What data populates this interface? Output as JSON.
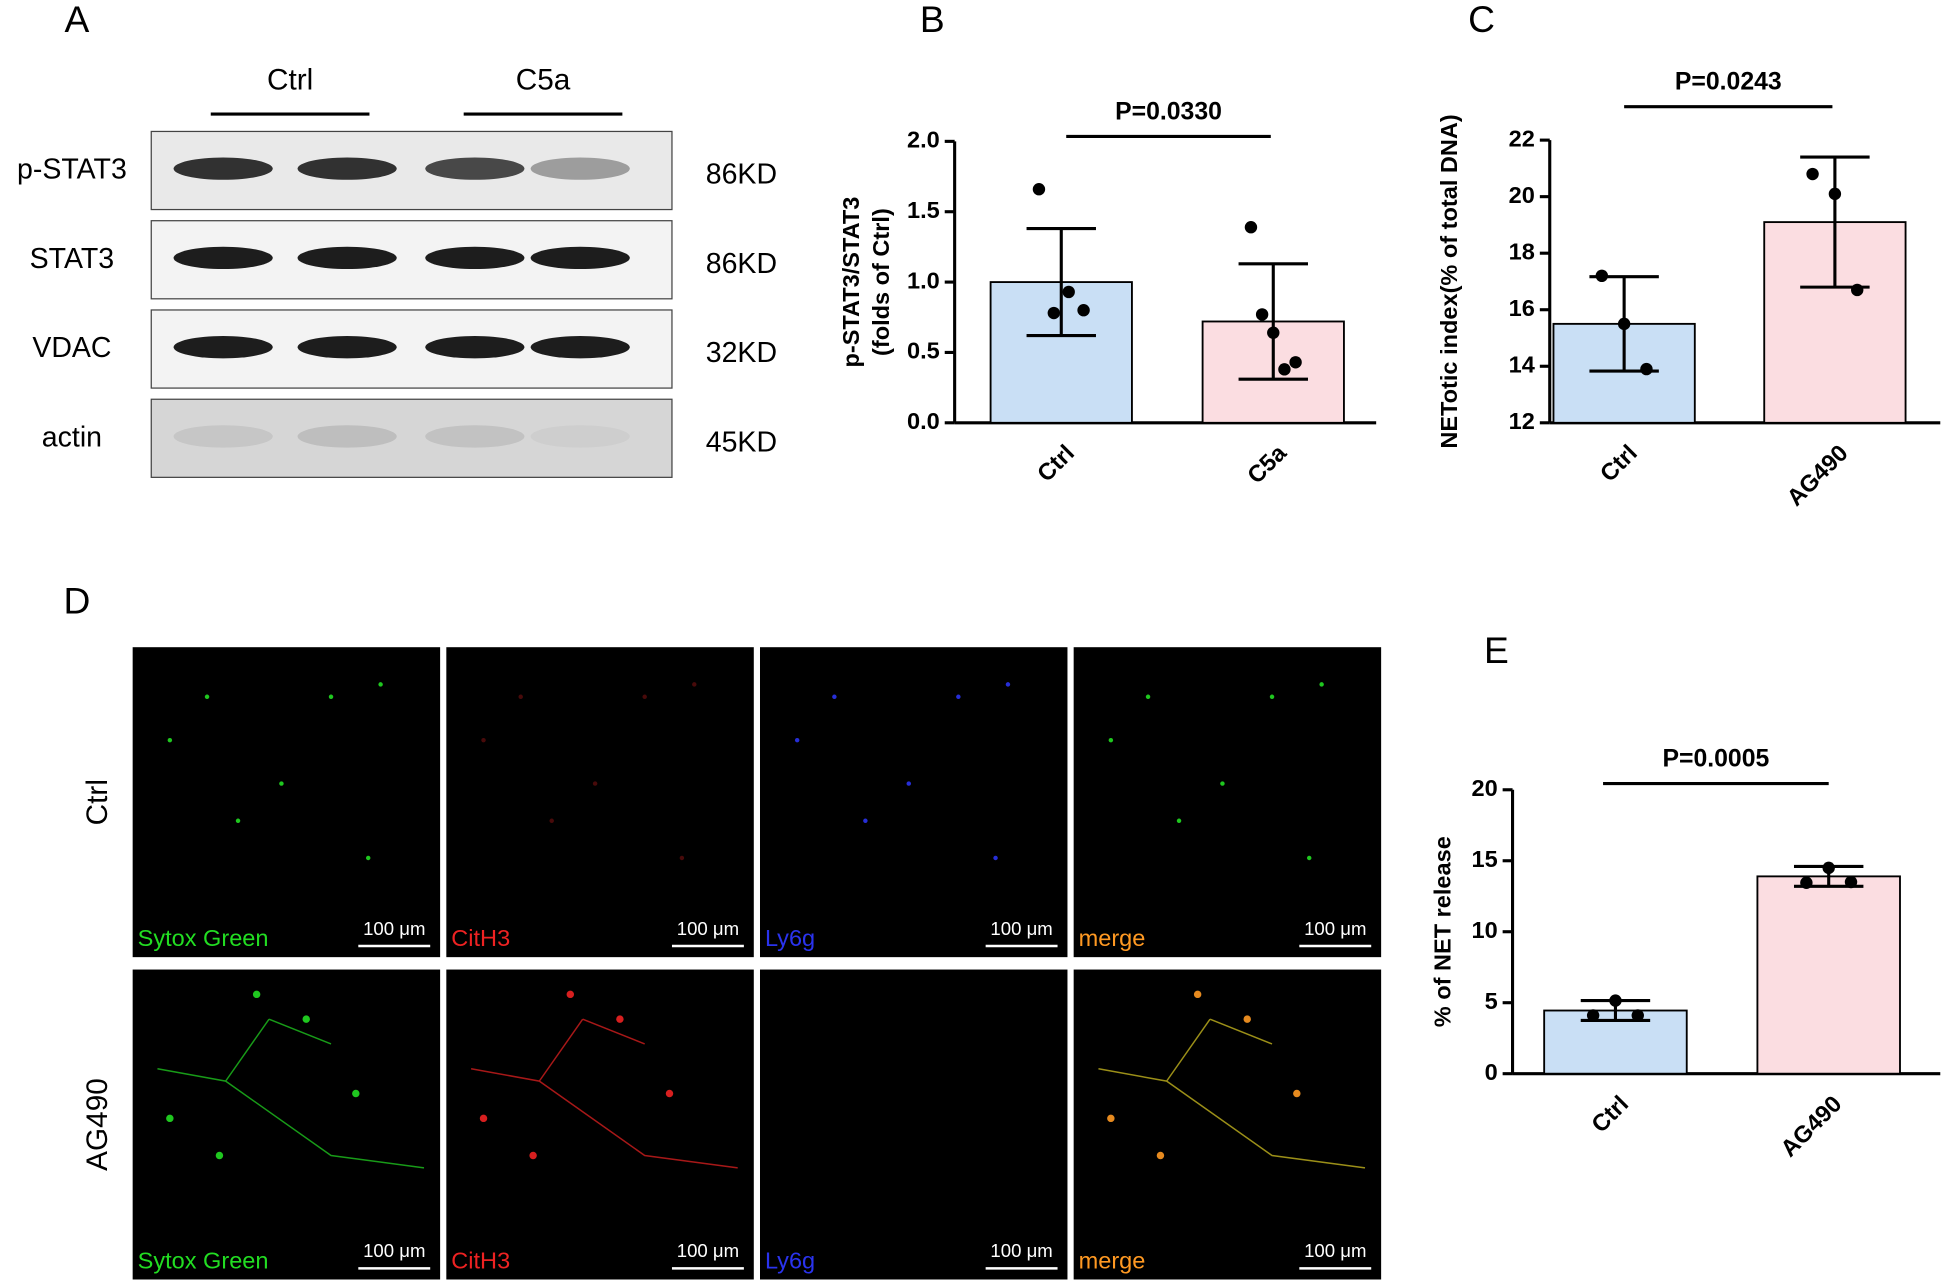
{
  "panel_labels": [
    "A",
    "B",
    "C",
    "D",
    "E"
  ],
  "blot": {
    "groups": [
      "Ctrl",
      "C5a"
    ],
    "rows": [
      {
        "label": "p-STAT3",
        "size": "86KD"
      },
      {
        "label": "STAT3",
        "size": "86KD"
      },
      {
        "label": "VDAC",
        "size": "32KD"
      },
      {
        "label": "actin",
        "size": "45KD"
      }
    ]
  },
  "microscopy": {
    "rows": [
      "Ctrl",
      "AG490"
    ],
    "channels": [
      {
        "name": "Sytox Green",
        "color": "#22dd22"
      },
      {
        "name": "CitH3",
        "color": "#ee2222"
      },
      {
        "name": "Ly6g",
        "color": "#2a33ee"
      },
      {
        "name": "merge",
        "color": "#ff9922"
      }
    ],
    "scale_bar": "100 μm"
  },
  "chart_data": [
    {
      "type": "bar",
      "ylabel": [
        "p-STAT3/STAT3",
        "(folds of Ctrl)"
      ],
      "annotation": "P=0.0330",
      "categories": [
        "Ctrl",
        "C5a"
      ],
      "values": [
        1.0,
        0.72
      ],
      "errors": [
        0.38,
        0.41
      ],
      "points": [
        [
          1.66,
          0.78,
          0.93,
          0.8
        ],
        [
          1.39,
          0.77,
          0.64,
          0.38,
          0.43
        ]
      ],
      "colors": [
        "#c9dff5",
        "#fbdde1"
      ],
      "ylim": [
        0,
        2
      ],
      "yticks": [
        {
          "value": 0,
          "label": "0.0"
        },
        {
          "value": 0.5,
          "label": "0.5"
        },
        {
          "value": 1,
          "label": "1.0"
        },
        {
          "value": 1.5,
          "label": "1.5"
        },
        {
          "value": 2,
          "label": "2.0"
        }
      ]
    },
    {
      "type": "bar",
      "ylabel": [
        "NETotic index(% of total DNA)"
      ],
      "annotation": "P=0.0243",
      "categories": [
        "Ctrl",
        "AG490"
      ],
      "values": [
        15.5,
        19.1
      ],
      "errors": [
        1.67,
        2.3
      ],
      "points": [
        [
          17.2,
          15.5,
          13.9
        ],
        [
          20.8,
          20.1,
          16.7
        ]
      ],
      "colors": [
        "#c9dff5",
        "#fbdde1"
      ],
      "ylim": [
        12,
        22
      ],
      "yticks": [
        12,
        14,
        16,
        18,
        20,
        22
      ]
    },
    {
      "type": "bar",
      "ylabel": [
        "% of NET release"
      ],
      "annotation": "P=0.0005",
      "categories": [
        "Ctrl",
        "AG490"
      ],
      "values": [
        4.45,
        13.9
      ],
      "errors": [
        0.7,
        0.7
      ],
      "points": [
        [
          4.1,
          5.15,
          4.1
        ],
        [
          13.45,
          14.5,
          13.5
        ]
      ],
      "colors": [
        "#c9dff5",
        "#fbdde1"
      ],
      "ylim": [
        0,
        20
      ],
      "yticks": [
        0,
        5,
        10,
        15,
        20
      ]
    }
  ]
}
